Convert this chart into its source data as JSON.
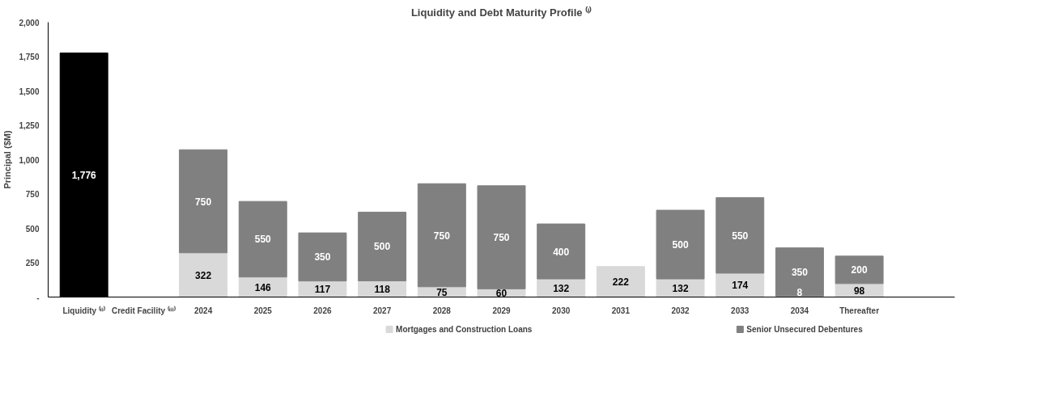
{
  "chart_data": {
    "type": "bar",
    "stacked": true,
    "title": "Liquidity and Debt Maturity Profile ⁽ⁱ⁾",
    "ylabel": "Principal ($M)",
    "categories": [
      "Liquidity ⁽ⁱⁱ⁾",
      "Credit Facility ⁽ⁱⁱⁱ⁾",
      "2024",
      "2025",
      "2026",
      "2027",
      "2028",
      "2029",
      "2030",
      "2031",
      "2032",
      "2033",
      "2034",
      "Thereafter"
    ],
    "series": [
      {
        "color": "#000000",
        "values": [
          1776,
          null,
          null,
          null,
          null,
          null,
          null,
          null,
          null,
          null,
          null,
          null,
          null,
          null
        ],
        "value_labels": [
          "1,776",
          null,
          null,
          null,
          null,
          null,
          null,
          null,
          null,
          null,
          null,
          null,
          null,
          null
        ]
      },
      {
        "name": "Mortgages and Construction Loans",
        "color": "#d9d9d9",
        "values": [
          null,
          null,
          322,
          146,
          117,
          118,
          75,
          60,
          132,
          222,
          132,
          174,
          8,
          98
        ],
        "value_labels": [
          null,
          null,
          "322",
          "146",
          "117",
          "118",
          "75",
          "60",
          "132",
          "222",
          "132",
          "174",
          "8",
          "98"
        ]
      },
      {
        "name": "Senior Unsecured Debentures",
        "color": "#808080",
        "values": [
          null,
          null,
          750,
          550,
          350,
          500,
          750,
          750,
          400,
          null,
          500,
          550,
          350,
          200
        ],
        "value_labels": [
          null,
          null,
          "750",
          "550",
          "350",
          "500",
          "750",
          "750",
          "400",
          null,
          "500",
          "550",
          "350",
          "200"
        ]
      }
    ],
    "ylim": [
      0,
      2000
    ],
    "yticks": [
      {
        "value": 0,
        "label": "-"
      },
      {
        "value": 250,
        "label": "250"
      },
      {
        "value": 500,
        "label": "500"
      },
      {
        "value": 750,
        "label": "750"
      },
      {
        "value": 1000,
        "label": "1,000"
      },
      {
        "value": 1250,
        "label": "1,250"
      },
      {
        "value": 1500,
        "label": "1,500"
      },
      {
        "value": 1750,
        "label": "1,750"
      },
      {
        "value": 2000,
        "label": "2,000"
      }
    ],
    "grid": false,
    "legend": "bottom"
  }
}
